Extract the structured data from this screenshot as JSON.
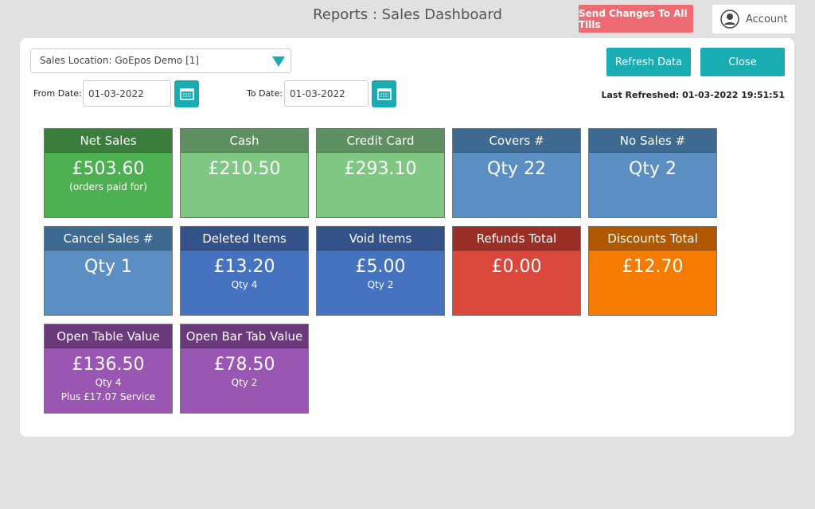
{
  "header": {
    "title": "Reports : Sales Dashboard",
    "send_button": "Send Changes To All Tills",
    "account": "Account"
  },
  "toolbar": {
    "location": "Sales Location: GoEpos Demo [1]",
    "refresh": "Refresh Data",
    "close": "Close",
    "from_label": "From Date:",
    "from_date": "01-03-2022",
    "to_label": "To Date:",
    "to_date": "01-03-2022",
    "last_refreshed": "Last Refreshed: 01-03-2022 19:51:51"
  },
  "tiles": [
    {
      "title": "Net Sales",
      "value": "£503.60",
      "lines": [
        "(orders paid for)"
      ]
    },
    {
      "title": "Cash",
      "value": "£210.50",
      "lines": []
    },
    {
      "title": "Credit Card",
      "value": "£293.10",
      "lines": []
    },
    {
      "title": "Covers #",
      "value": "Qty 22",
      "lines": []
    },
    {
      "title": "No Sales #",
      "value": "Qty 2",
      "lines": []
    },
    {
      "title": "Cancel Sales #",
      "value": "Qty 1",
      "lines": []
    },
    {
      "title": "Deleted Items",
      "value": "£13.20",
      "lines": [
        "Qty 4"
      ]
    },
    {
      "title": "Void Items",
      "value": "£5.00",
      "lines": [
        "Qty 2"
      ]
    },
    {
      "title": "Refunds Total",
      "value": "£0.00",
      "lines": []
    },
    {
      "title": "Discounts Total",
      "value": "£12.70",
      "lines": []
    },
    {
      "title": "Open Table Value",
      "value": "£136.50",
      "lines": [
        "Qty 4",
        "Plus £17.07 Service"
      ]
    },
    {
      "title": "Open Bar Tab Value",
      "value": "£78.50",
      "lines": [
        "Qty 2"
      ]
    }
  ]
}
